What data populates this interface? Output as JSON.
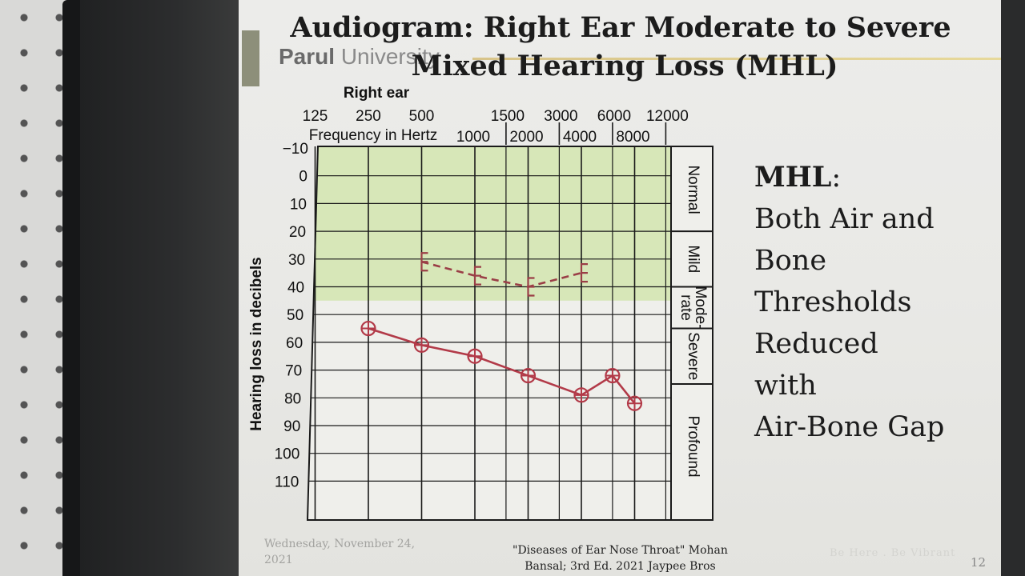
{
  "slide": {
    "title_line1": "Audiogram: Right Ear Moderate to Severe",
    "title_line2": "Mixed Hearing Loss (MHL)",
    "logo_bold": "Parul",
    "logo_light": "University",
    "side_heading": "MHL",
    "side_colon": ":",
    "side_lines": [
      "Both Air and",
      "Bone",
      "Thresholds",
      "Reduced",
      "with",
      "Air-Bone Gap"
    ],
    "footer_date_line1": "Wednesday, November 24,",
    "footer_date_line2": "2021",
    "footer_ref_line1": "\"Diseases of Ear Nose  Throat\" Mohan",
    "footer_ref_line2": "Bansal; 3rd Ed. 2021 Jaypee Bros",
    "footer_watermark": "Be Here . Be Vibrant",
    "page_number": "12"
  },
  "chart_data": {
    "type": "line",
    "title": "Right ear",
    "xlabel": "Frequency in Hertz",
    "ylabel": "Hearing loss in decibels",
    "x_scale": "log",
    "x_main_ticks": [
      125,
      250,
      500,
      1000,
      2000,
      4000,
      8000
    ],
    "x_main_tick_labels": [
      "125",
      "250",
      "500",
      "1000",
      "2000",
      "4000",
      "8000"
    ],
    "x_inter_ticks": [
      1500,
      3000,
      6000,
      12000
    ],
    "x_inter_tick_labels": [
      "1500",
      "3000",
      "6000",
      "12000"
    ],
    "y_ticks": [
      -10,
      0,
      10,
      20,
      30,
      40,
      50,
      60,
      70,
      80,
      90,
      100,
      110
    ],
    "y_tick_labels": [
      "−10",
      "0",
      "10",
      "20",
      "30",
      "40",
      "50",
      "60",
      "70",
      "80",
      "90",
      "100",
      "110"
    ],
    "ylim": [
      -10,
      120
    ],
    "y_inverted": true,
    "grid": true,
    "degree_bands": [
      {
        "label": "Normal",
        "from": -10,
        "to": 20
      },
      {
        "label": "Mild",
        "from": 20,
        "to": 40
      },
      {
        "label": "Mode-\nrate",
        "from": 40,
        "to": 55
      },
      {
        "label": "Severe",
        "from": 55,
        "to": 75
      },
      {
        "label": "Profound",
        "from": 75,
        "to": 120
      }
    ],
    "series": [
      {
        "style": "bone-conduction-dashed",
        "marker": "bracket",
        "color": "#9a3e46",
        "x": [
          500,
          1000,
          2000,
          4000
        ],
        "y": [
          31,
          36,
          40,
          35
        ]
      },
      {
        "style": "air-conduction-solid",
        "marker": "circle",
        "color": "#b23a48",
        "x": [
          250,
          500,
          1000,
          2000,
          4000,
          6000,
          8000
        ],
        "y": [
          55,
          61,
          65,
          72,
          79,
          72,
          82
        ]
      }
    ]
  }
}
